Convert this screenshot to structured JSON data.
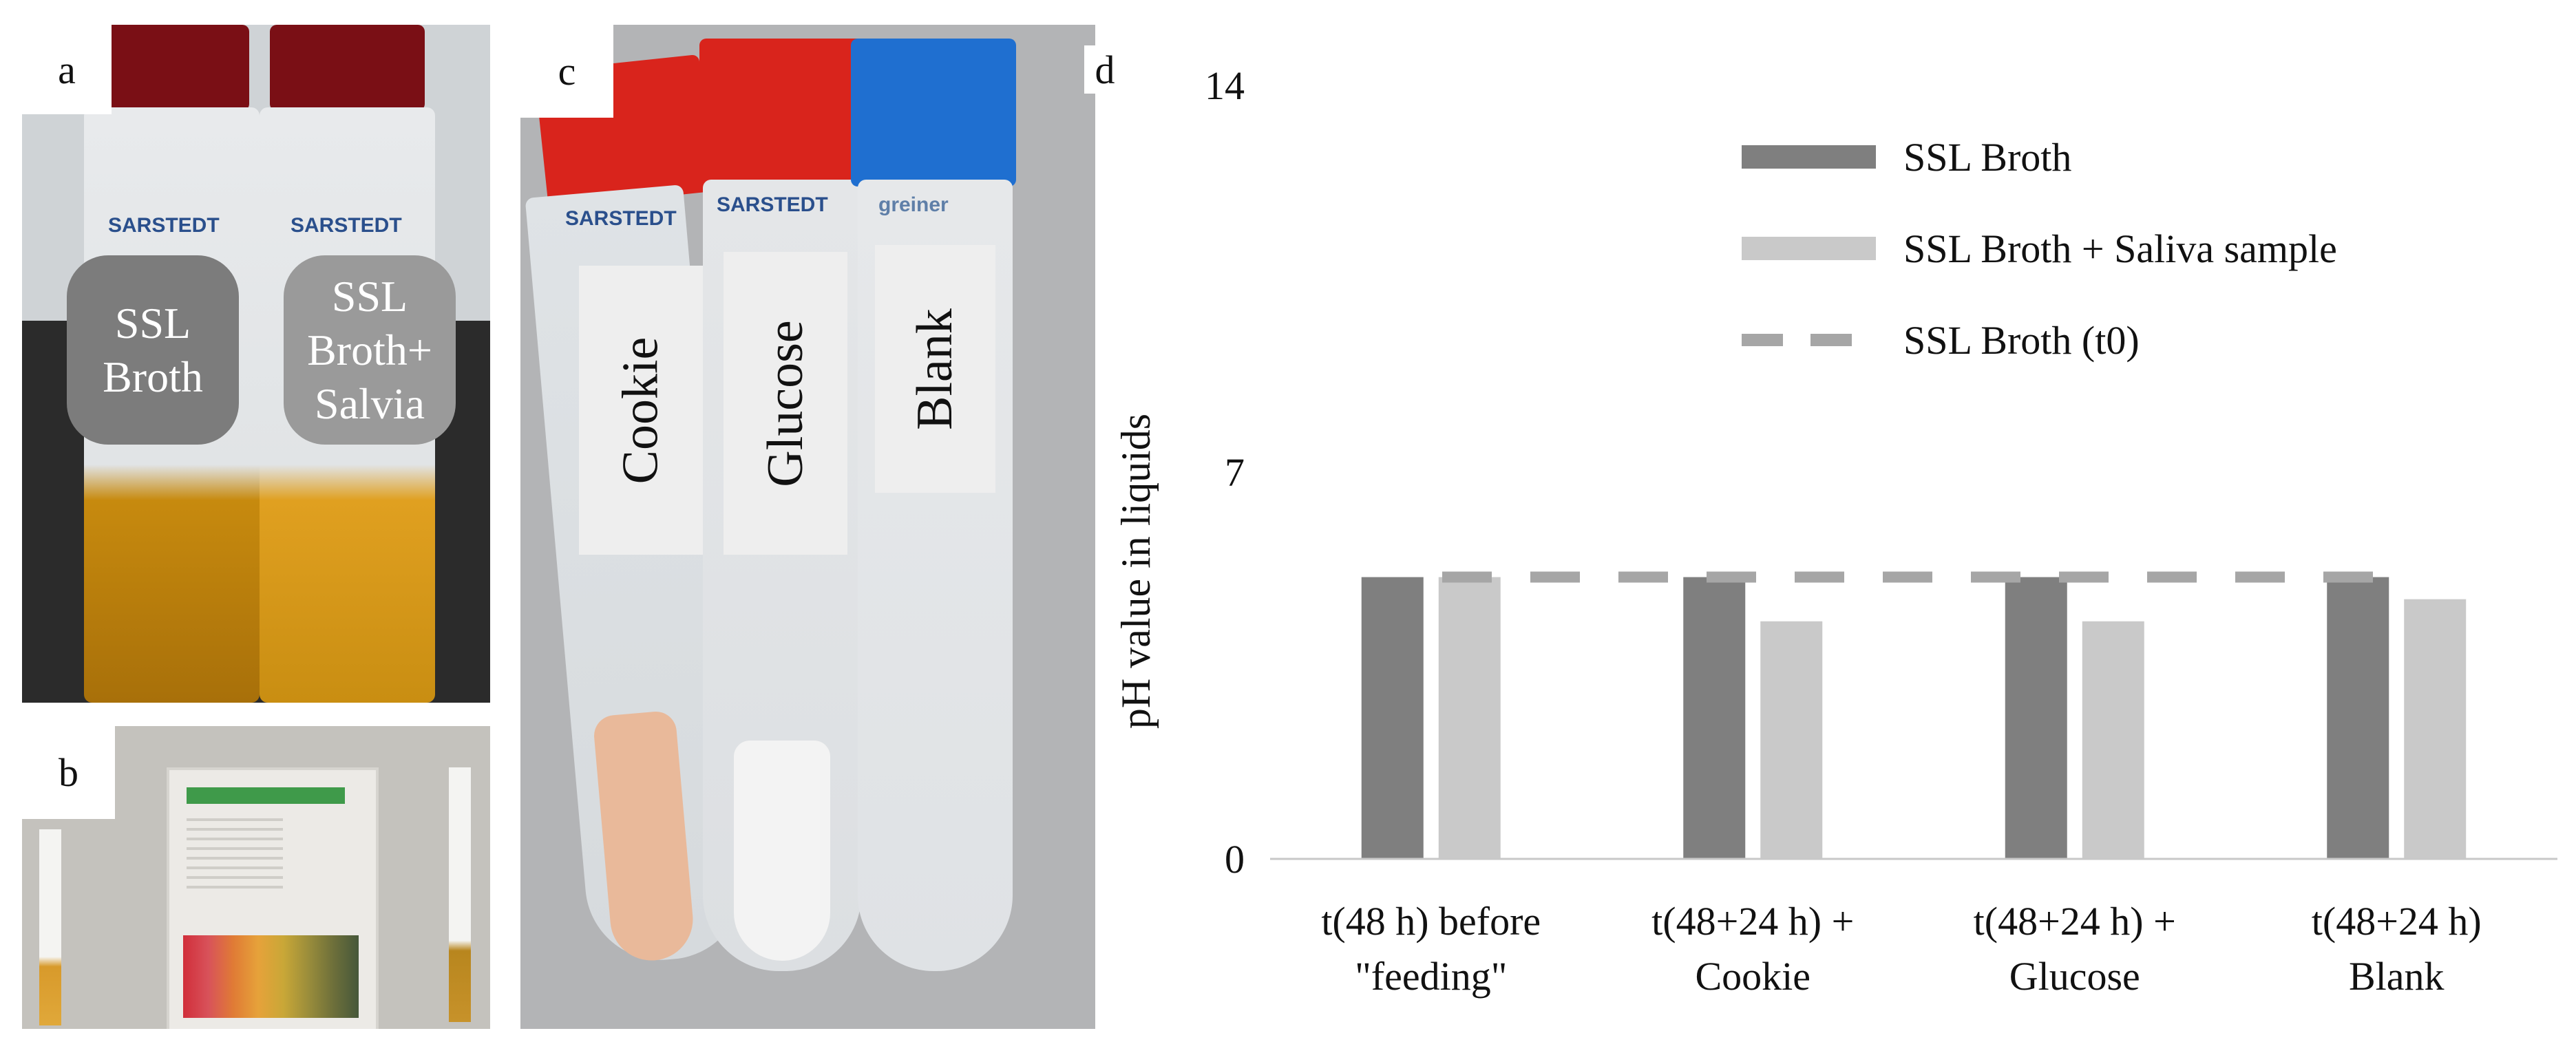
{
  "panels": {
    "a": {
      "letter": "a",
      "tube_labels": [
        "SSL\nBroth",
        "SSL\nBroth+\nSalvia"
      ],
      "brand_text": "SARSTEDT"
    },
    "b": {
      "letter": "b"
    },
    "c": {
      "letter": "c",
      "tube_labels": [
        "Cookie",
        "Glucose",
        "Blank"
      ],
      "brand_texts": [
        "SARSTEDT",
        "SARSTEDT",
        "greiner"
      ]
    },
    "d": {
      "letter": "d"
    }
  },
  "colors": {
    "dark_bar": "#7f7f7f",
    "light_bar": "#c9c9c9",
    "dashed_line": "#a6a6a6",
    "cap_red": "#d9241c",
    "cap_dark_red": "#7a0f15",
    "cap_blue": "#1f6fd0",
    "liquid_amber": "#c78a0e"
  },
  "chart_data": {
    "type": "bar",
    "categories": [
      [
        "t(48 h) before",
        "\"feeding\""
      ],
      [
        "t(48+24 h) +",
        "Cookie"
      ],
      [
        "t(48+24 h) +",
        "Glucose"
      ],
      [
        "t(48+24 h)",
        "Blank"
      ]
    ],
    "series": [
      {
        "name": "SSL Broth",
        "values": [
          5.1,
          5.1,
          5.1,
          5.1
        ],
        "color": "#7f7f7f"
      },
      {
        "name": "SSL Broth + Saliva sample",
        "values": [
          5.1,
          4.3,
          4.3,
          4.7
        ],
        "color": "#c9c9c9"
      }
    ],
    "reference_line": {
      "name": "SSL Broth (t0)",
      "value": 5.1,
      "style": "dashed",
      "color": "#a6a6a6"
    },
    "ylabel": "pH value in liquids",
    "ylim": [
      0,
      14
    ],
    "yticks": [
      0,
      7,
      14
    ],
    "grid": false,
    "legend_position": "top-right"
  }
}
